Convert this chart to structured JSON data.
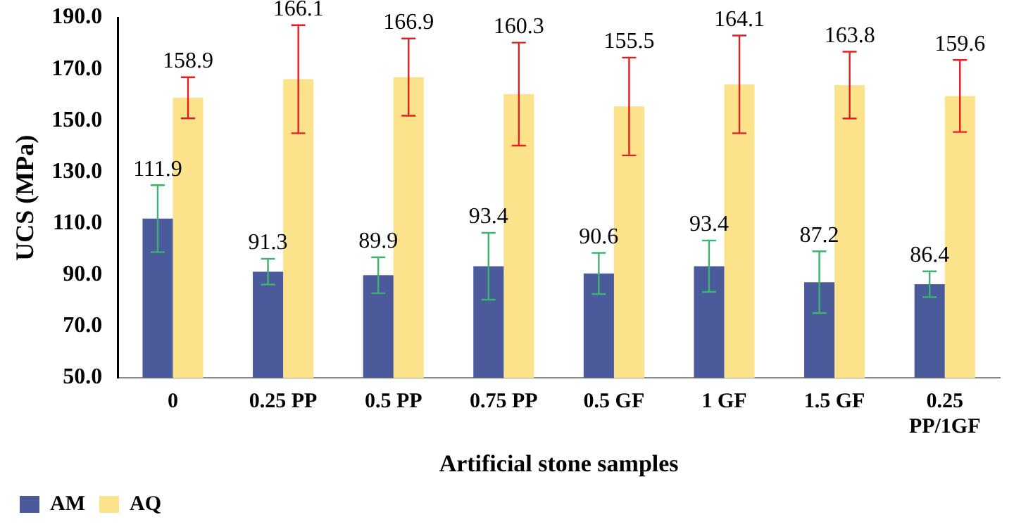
{
  "chart_data": {
    "type": "bar",
    "xlabel": "Artificial stone samples",
    "ylabel": "UCS (MPa)",
    "categories": [
      "0",
      "0.25 PP",
      "0.5 PP",
      "0.75 PP",
      "0.5 GF",
      "1 GF",
      "1.5 GF",
      "0.25 PP/1GF"
    ],
    "series": [
      {
        "name": "AM",
        "color": "#4a5a9a",
        "values": [
          111.9,
          91.3,
          89.9,
          93.4,
          90.6,
          93.4,
          87.2,
          86.4
        ],
        "errors": [
          13,
          5,
          7,
          13,
          8,
          10,
          12,
          5
        ]
      },
      {
        "name": "AQ",
        "color": "#fde28c",
        "values": [
          158.9,
          166.1,
          166.9,
          160.3,
          155.5,
          164.1,
          163.8,
          159.6
        ],
        "errors": [
          8,
          21,
          15,
          20,
          19,
          19,
          13,
          14
        ]
      }
    ],
    "ylim": [
      50,
      190
    ],
    "yticks": [
      {
        "value": 50,
        "label": "50.0"
      },
      {
        "value": 70,
        "label": "70.0"
      },
      {
        "value": 90,
        "label": "90.0"
      },
      {
        "value": 110,
        "label": "110.0"
      },
      {
        "value": 130,
        "label": "130.0"
      },
      {
        "value": 150,
        "label": "150.0"
      },
      {
        "value": 170,
        "label": "170.0"
      },
      {
        "value": 190,
        "label": "190.0"
      }
    ],
    "data_labels": true,
    "legend": "bottom left",
    "grid": false
  }
}
